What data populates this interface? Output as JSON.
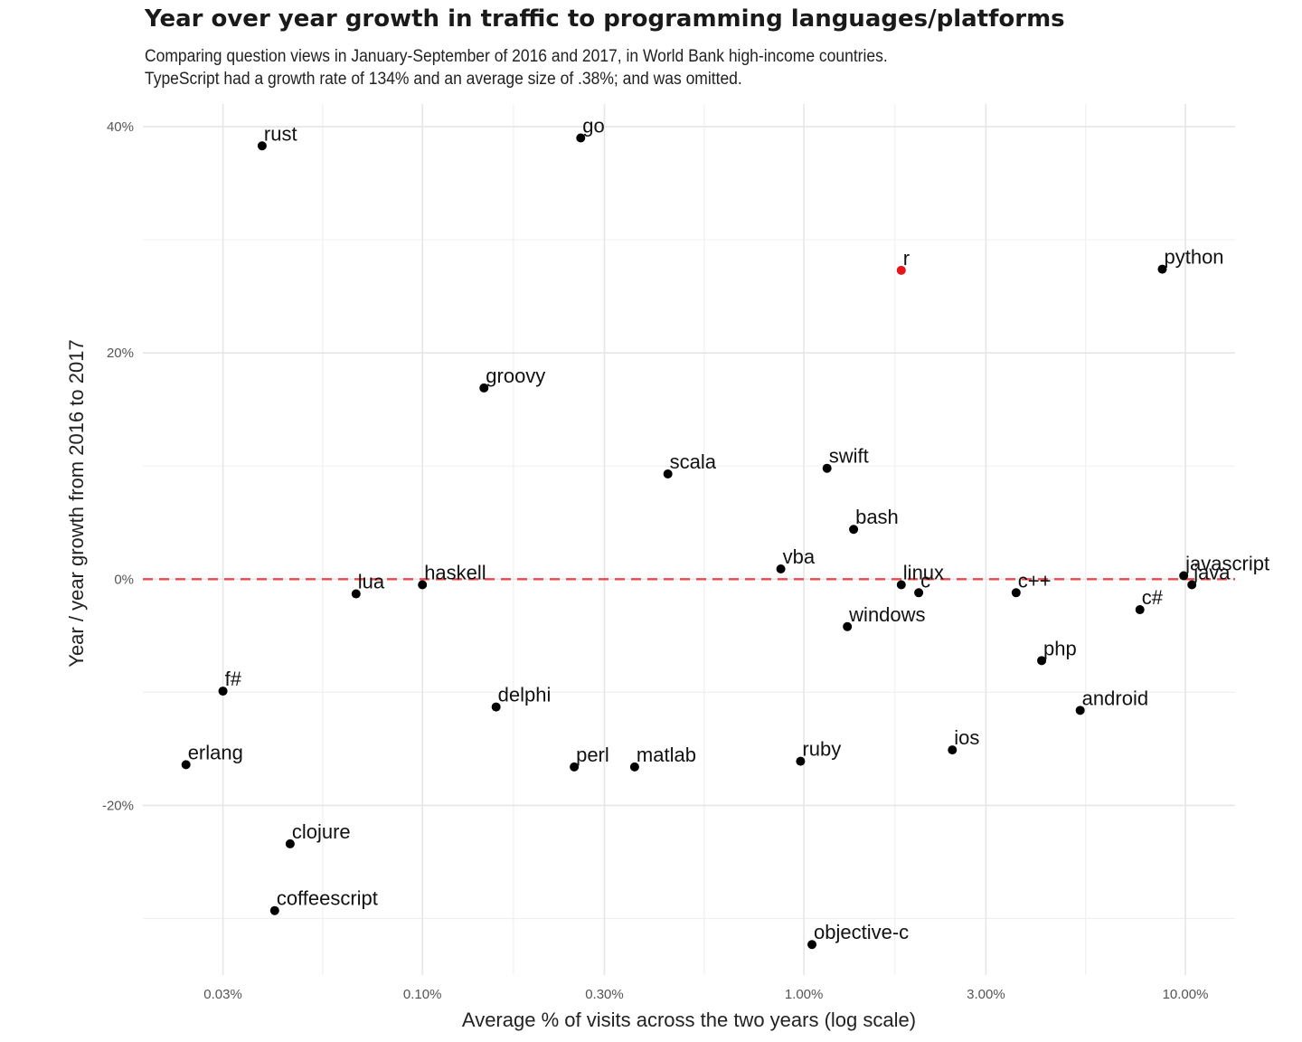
{
  "chart_data": {
    "type": "scatter",
    "title": "Year over year growth in traffic to programming languages/platforms",
    "subtitle": [
      "Comparing question views in January-September of 2016 and 2017, in World Bank high-income countries.",
      "TypeScript had a growth rate of 134% and an average size of .38%; and was omitted."
    ],
    "xlabel": "Average % of visits across the two years (log scale)",
    "ylabel": "Year / year growth from 2016 to 2017",
    "x_scale": "log",
    "xlim": [
      0.0185,
      13.5
    ],
    "ylim": [
      -35,
      42
    ],
    "x_ticks": [
      {
        "value": 0.03,
        "label": "0.03%"
      },
      {
        "value": 0.1,
        "label": "0.10%"
      },
      {
        "value": 0.3,
        "label": "0.30%"
      },
      {
        "value": 1,
        "label": "1.00%"
      },
      {
        "value": 3,
        "label": "3.00%"
      },
      {
        "value": 10,
        "label": "10.00%"
      }
    ],
    "y_ticks": [
      {
        "value": 40,
        "label": "40%"
      },
      {
        "value": 20,
        "label": "20%"
      },
      {
        "value": 0,
        "label": "0%"
      },
      {
        "value": -20,
        "label": "-20%"
      }
    ],
    "grid": true,
    "reference_line": {
      "y": 0,
      "style": "dashed",
      "color": "#e8474b"
    },
    "point_color": "#000000",
    "highlight_color": "#e8141b",
    "points": [
      {
        "label": "rust",
        "x": 0.038,
        "y": 38.3
      },
      {
        "label": "go",
        "x": 0.26,
        "y": 39.0
      },
      {
        "label": "r",
        "x": 1.8,
        "y": 27.3,
        "highlight": true
      },
      {
        "label": "python",
        "x": 8.7,
        "y": 27.4
      },
      {
        "label": "groovy",
        "x": 0.145,
        "y": 16.9
      },
      {
        "label": "scala",
        "x": 0.44,
        "y": 9.3
      },
      {
        "label": "swift",
        "x": 1.15,
        "y": 9.8
      },
      {
        "label": "bash",
        "x": 1.35,
        "y": 4.4
      },
      {
        "label": "vba",
        "x": 0.87,
        "y": 0.9
      },
      {
        "label": "javascript",
        "x": 9.9,
        "y": 0.3
      },
      {
        "label": "java",
        "x": 10.4,
        "y": -0.5
      },
      {
        "label": "lua",
        "x": 0.067,
        "y": -1.3
      },
      {
        "label": "haskell",
        "x": 0.1,
        "y": -0.5
      },
      {
        "label": "linux",
        "x": 1.8,
        "y": -0.5
      },
      {
        "label": "c",
        "x": 2.0,
        "y": -1.2
      },
      {
        "label": "c++",
        "x": 3.6,
        "y": -1.2
      },
      {
        "label": "c#",
        "x": 7.6,
        "y": -2.7
      },
      {
        "label": "windows",
        "x": 1.3,
        "y": -4.2
      },
      {
        "label": "php",
        "x": 4.2,
        "y": -7.2
      },
      {
        "label": "f#",
        "x": 0.03,
        "y": -9.9
      },
      {
        "label": "delphi",
        "x": 0.156,
        "y": -11.3
      },
      {
        "label": "android",
        "x": 5.3,
        "y": -11.6
      },
      {
        "label": "ios",
        "x": 2.45,
        "y": -15.1
      },
      {
        "label": "erlang",
        "x": 0.024,
        "y": -16.4
      },
      {
        "label": "perl",
        "x": 0.25,
        "y": -16.6
      },
      {
        "label": "matlab",
        "x": 0.36,
        "y": -16.6
      },
      {
        "label": "ruby",
        "x": 0.98,
        "y": -16.1
      },
      {
        "label": "clojure",
        "x": 0.045,
        "y": -23.4
      },
      {
        "label": "coffeescript",
        "x": 0.041,
        "y": -29.3
      },
      {
        "label": "objective-c",
        "x": 1.05,
        "y": -32.3
      }
    ]
  }
}
